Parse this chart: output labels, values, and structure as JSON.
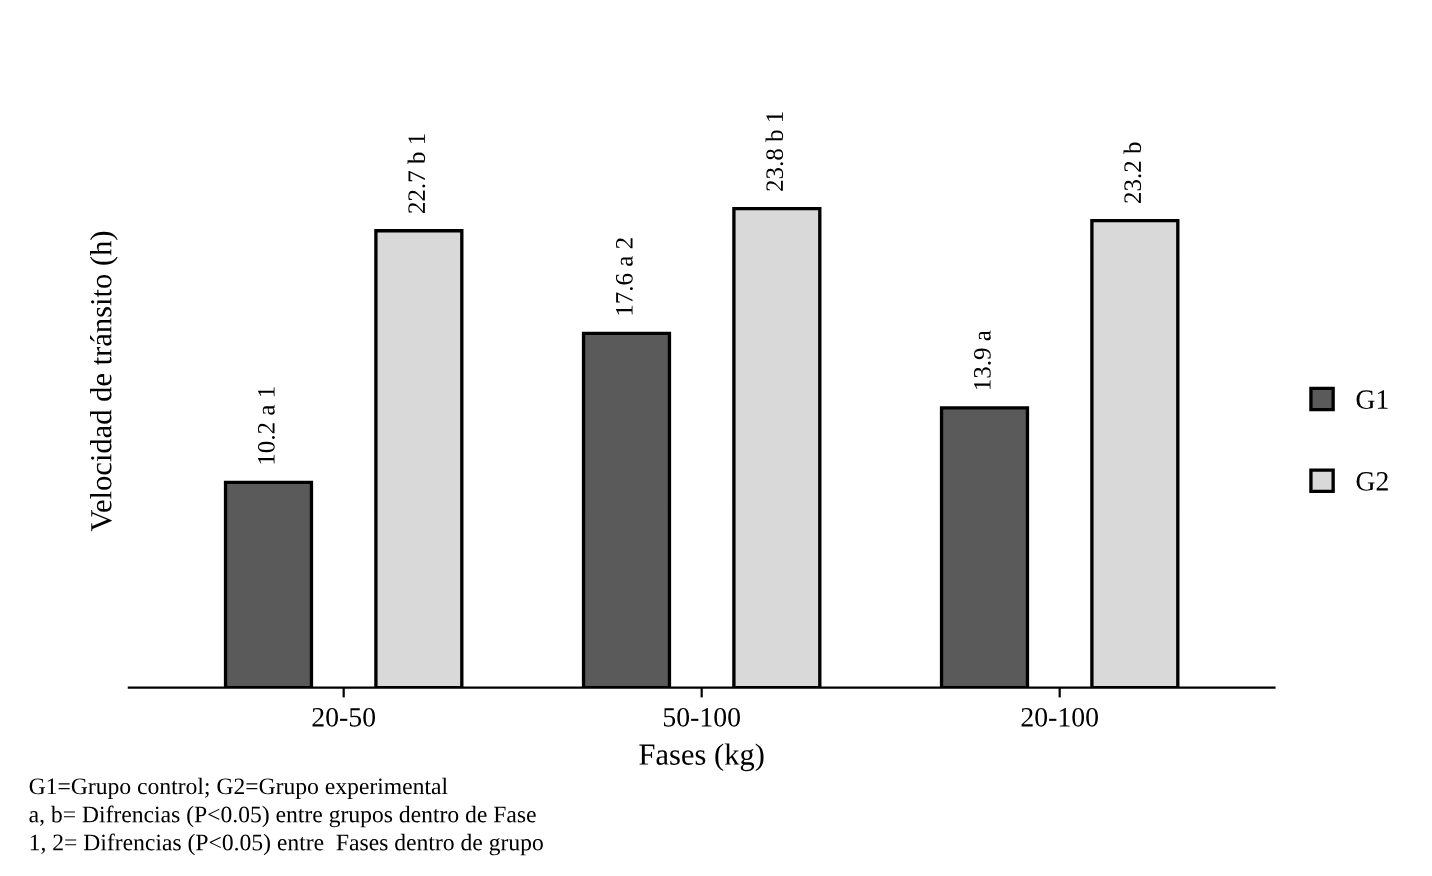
{
  "chart_data": {
    "type": "bar",
    "xlabel": "Fases (kg)",
    "ylabel": "Velocidad de tránsito (h)",
    "categories": [
      "20-50",
      "50-100",
      "20-100"
    ],
    "series": [
      {
        "name": "G1",
        "color": "#5a5a5a",
        "values": [
          10.2,
          17.6,
          13.9
        ],
        "value_labels": [
          "10.2 a 1",
          "17.6 a 2",
          "13.9 a"
        ]
      },
      {
        "name": "G2",
        "color": "#d9d9d9",
        "values": [
          22.7,
          23.8,
          23.2
        ],
        "value_labels": [
          "22.7 b 1",
          "23.8 b 1",
          "23.2 b"
        ]
      }
    ],
    "legend": "right",
    "grid": false,
    "annotations": [
      "G1=Grupo control; G2=Grupo experimental",
      "a, b= Difrencias (P<0.05) entre grupos dentro de Fase",
      "1, 2= Difrencias (P<0.05) entre  Fases dentro de grupo"
    ]
  }
}
